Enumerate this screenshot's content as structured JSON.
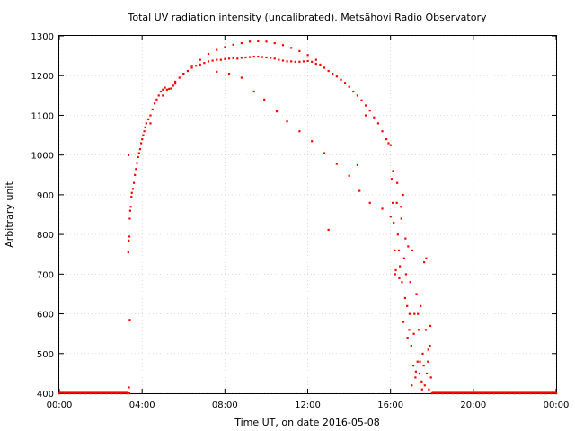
{
  "chart_data": {
    "type": "scatter",
    "title": "Total UV radiation intensity (uncalibrated). Metsähovi Radio Observatory",
    "xlabel": "Time UT, on date 2016-05-08",
    "ylabel": "Arbitrary unit",
    "x_unit": "hours UT",
    "xlim": [
      0,
      24
    ],
    "ylim": [
      400,
      1300
    ],
    "x_ticks": [
      0,
      4,
      8,
      12,
      16,
      20,
      24
    ],
    "x_tick_labels": [
      "00:00",
      "04:00",
      "08:00",
      "12:00",
      "16:00",
      "20:00",
      "00:00"
    ],
    "y_ticks": [
      400,
      500,
      600,
      700,
      800,
      900,
      1000,
      1100,
      1200,
      1300
    ],
    "y_tick_labels": [
      "400",
      "500",
      "600",
      "700",
      "800",
      "900",
      "1000",
      "1100",
      "1200",
      "1300"
    ],
    "grid": true,
    "marker_color": "#ff0000",
    "series": [
      {
        "x": [
          0.0,
          0.25,
          0.5,
          0.75,
          1.0,
          1.25,
          1.5,
          1.75,
          2.0,
          2.25,
          2.5,
          2.75,
          3.0,
          3.25,
          3.33,
          3.35,
          3.38,
          3.4,
          3.42,
          3.45,
          3.48,
          3.5,
          3.55,
          3.6,
          3.65,
          3.7,
          3.75,
          3.8,
          3.85,
          3.9,
          3.95,
          4.0,
          4.05,
          4.1,
          4.15,
          4.2,
          4.3,
          4.4,
          4.5,
          4.6,
          4.7,
          4.8,
          4.9,
          5.0,
          5.1,
          5.2,
          5.3,
          5.4,
          5.5,
          5.6,
          5.8,
          6.0,
          6.2,
          6.4,
          6.6,
          6.8,
          7.0,
          7.2,
          7.4,
          7.6,
          7.8,
          8.0,
          8.2,
          8.4,
          8.6,
          8.8,
          9.0,
          9.2,
          9.4,
          9.6,
          9.8,
          10.0,
          10.2,
          10.4,
          10.6,
          10.8,
          11.0,
          11.2,
          11.4,
          11.6,
          11.8,
          12.0,
          12.2,
          12.4,
          12.6,
          12.8,
          13.0,
          13.2,
          13.4,
          13.6,
          13.8,
          14.0,
          14.2,
          14.4,
          14.6,
          14.8,
          15.0,
          15.2,
          15.4,
          15.6,
          15.8,
          15.9,
          16.0,
          4.4,
          5.0,
          5.6,
          6.0,
          6.4,
          6.8,
          7.2,
          7.6,
          8.0,
          8.4,
          8.8,
          9.2,
          9.6,
          10.0,
          10.4,
          10.8,
          11.2,
          11.6,
          12.0,
          12.4,
          7.6,
          8.2,
          8.8,
          9.4,
          9.9,
          10.5,
          11.0,
          11.6,
          12.2,
          12.8,
          13.4,
          14.0,
          14.5,
          15.0,
          15.6,
          16.0,
          13.0,
          14.4,
          14.8,
          16.05,
          16.1,
          16.15,
          16.2,
          16.25,
          16.3,
          16.35,
          16.4,
          16.45,
          16.5,
          16.55,
          16.6,
          16.65,
          16.7,
          16.75,
          16.8,
          16.85,
          16.9,
          16.95,
          17.0,
          17.05,
          17.1,
          17.15,
          17.2,
          17.25,
          17.3,
          17.35,
          17.4,
          17.45,
          17.5,
          17.55,
          17.6,
          17.65,
          17.7,
          17.75,
          17.8,
          17.85,
          17.9,
          17.95,
          16.12,
          16.22,
          16.32,
          16.42,
          16.52,
          16.62,
          16.72,
          16.82,
          16.92,
          17.02,
          17.12,
          17.22,
          17.32,
          17.42,
          17.52,
          17.62,
          17.72,
          17.82,
          17.92,
          18.0,
          18.25,
          18.5,
          18.75,
          19.0,
          19.25,
          19.5,
          19.75,
          20.0,
          20.25,
          20.5,
          20.75,
          21.0,
          21.25,
          21.5,
          21.75,
          22.0,
          22.25,
          22.5,
          22.75,
          23.0,
          23.25,
          23.5,
          23.75,
          24.0,
          3.4,
          3.36,
          3.34,
          3.38
        ],
        "y": [
          400,
          400,
          400,
          400,
          400,
          400,
          400,
          400,
          400,
          400,
          400,
          400,
          400,
          400,
          755,
          785,
          795,
          840,
          860,
          870,
          895,
          905,
          915,
          930,
          950,
          965,
          980,
          995,
          1005,
          1015,
          1030,
          1040,
          1050,
          1060,
          1070,
          1080,
          1090,
          1100,
          1115,
          1130,
          1140,
          1150,
          1160,
          1165,
          1170,
          1165,
          1167,
          1168,
          1175,
          1180,
          1195,
          1205,
          1212,
          1220,
          1225,
          1228,
          1232,
          1236,
          1238,
          1240,
          1240,
          1242,
          1243,
          1244,
          1243,
          1245,
          1246,
          1247,
          1248,
          1248,
          1247,
          1246,
          1245,
          1243,
          1240,
          1238,
          1236,
          1236,
          1235,
          1235,
          1236,
          1237,
          1235,
          1230,
          1228,
          1220,
          1212,
          1205,
          1198,
          1190,
          1182,
          1172,
          1160,
          1150,
          1138,
          1125,
          1112,
          1095,
          1080,
          1060,
          1040,
          1030,
          1025,
          1080,
          1150,
          1185,
          1205,
          1225,
          1240,
          1255,
          1265,
          1272,
          1278,
          1282,
          1286,
          1287,
          1286,
          1282,
          1277,
          1270,
          1262,
          1252,
          1240,
          1210,
          1205,
          1195,
          1160,
          1140,
          1110,
          1085,
          1060,
          1035,
          1005,
          978,
          948,
          910,
          880,
          865,
          845,
          812,
          975,
          1100,
          940,
          880,
          830,
          760,
          710,
          880,
          800,
          760,
          720,
          870,
          680,
          900,
          740,
          640,
          700,
          620,
          770,
          560,
          680,
          520,
          760,
          470,
          600,
          440,
          650,
          480,
          560,
          450,
          620,
          430,
          500,
          470,
          420,
          560,
          450,
          480,
          410,
          520,
          440,
          960,
          700,
          930,
          690,
          840,
          580,
          790,
          540,
          600,
          420,
          550,
          455,
          600,
          480,
          410,
          730,
          740,
          510,
          570,
          400,
          400,
          400,
          400,
          400,
          400,
          400,
          400,
          400,
          400,
          400,
          400,
          400,
          400,
          400,
          400,
          400,
          400,
          400,
          400,
          400,
          400,
          400,
          400,
          400,
          585,
          415,
          1000,
          400
        ]
      }
    ]
  }
}
